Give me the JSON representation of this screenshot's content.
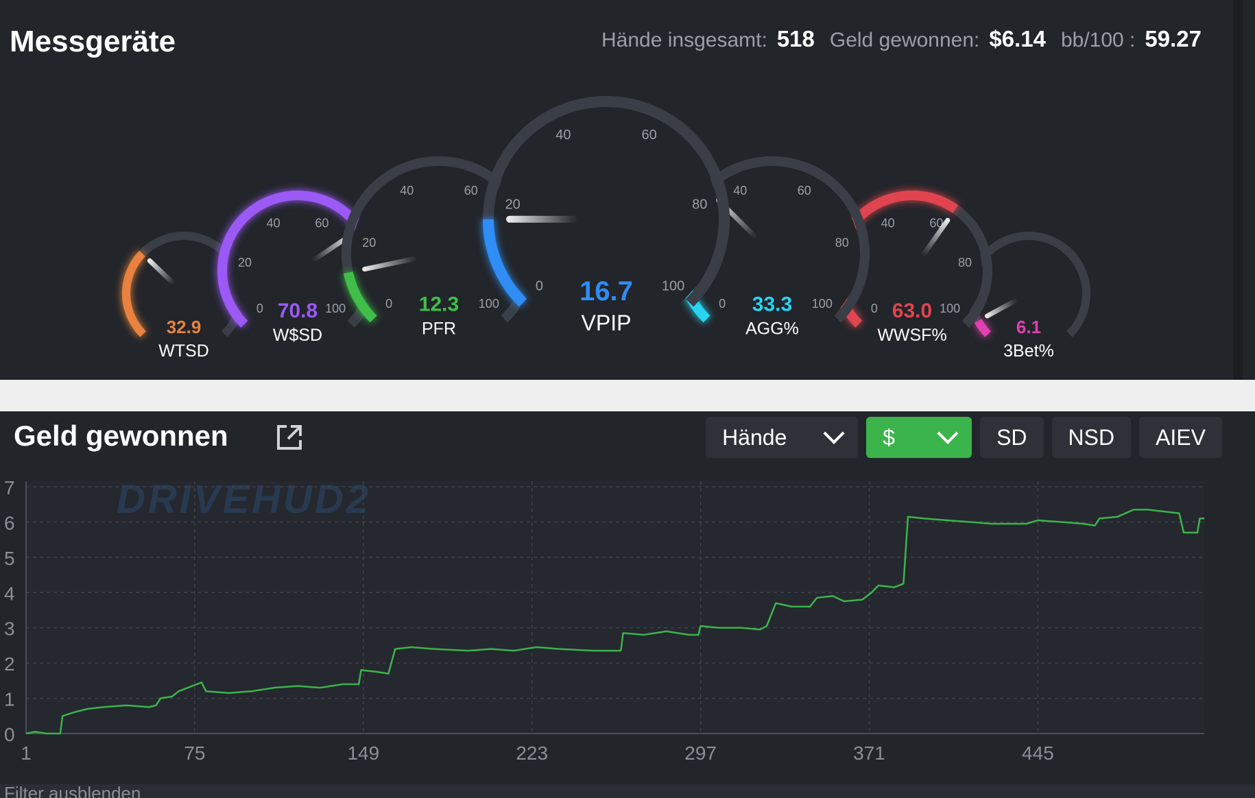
{
  "gauges_panel": {
    "title": "Messgeräte",
    "stats": [
      {
        "label": "Hände insgesamt:",
        "value": "518"
      },
      {
        "label": "Geld gewonnen:",
        "value": "$6.14"
      },
      {
        "label": "bb/100 :",
        "value": "59.27"
      }
    ],
    "gauges": [
      {
        "id": "wtsd",
        "name": "WTSD",
        "value": 32.9,
        "display": "32.9",
        "color": "#e8823e",
        "size": "small",
        "ticks": []
      },
      {
        "id": "wsd",
        "name": "W$SD",
        "value": 70.8,
        "display": "70.8",
        "color": "#9b59f5",
        "size": "medium",
        "ticks": [
          "0",
          "20",
          "40",
          "60",
          "100"
        ]
      },
      {
        "id": "pfr",
        "name": "PFR",
        "value": 12.3,
        "display": "12.3",
        "color": "#3fbf48",
        "size": "medium",
        "ticks": [
          "0",
          "20",
          "40",
          "60",
          "100"
        ]
      },
      {
        "id": "vpip",
        "name": "VPIP",
        "value": 16.7,
        "display": "16.7",
        "color": "#2f8df5",
        "size": "large",
        "ticks": [
          "0",
          "20",
          "40",
          "60",
          "80",
          "100"
        ]
      },
      {
        "id": "agg",
        "name": "AGG%",
        "value": 33.3,
        "display": "33.3",
        "color": "#28d4f0",
        "size": "medium",
        "ticks": [
          "0",
          "40",
          "60",
          "80",
          "100"
        ]
      },
      {
        "id": "wwsf",
        "name": "WWSF%",
        "value": 63.0,
        "display": "63.0",
        "color": "#e0454f",
        "size": "medium",
        "ticks": [
          "0",
          "40",
          "60",
          "80",
          "100"
        ]
      },
      {
        "id": "3bet",
        "name": "3Bet%",
        "value": 6.1,
        "display": "6.1",
        "color": "#e040b0",
        "size": "small",
        "ticks": []
      }
    ]
  },
  "money_panel": {
    "title": "Geld gewonnen",
    "external_icon": "external-link-icon",
    "toolbar": {
      "x_axis_select": "Hände",
      "unit_select": "$",
      "sd_label": "SD",
      "nsd_label": "NSD",
      "aiev_label": "AIEV"
    },
    "watermark": "DRIVEHUD2",
    "footer_text": "Filter ausblenden"
  },
  "chart_data": {
    "type": "line",
    "xlabel": "",
    "ylabel": "",
    "x_ticks": [
      "1",
      "75",
      "149",
      "223",
      "297",
      "371",
      "445"
    ],
    "y_ticks": [
      "0",
      "1",
      "2",
      "3",
      "4",
      "5",
      "6",
      "7"
    ],
    "xlim": [
      1,
      518
    ],
    "ylim": [
      0,
      7
    ],
    "grid": true,
    "series": [
      {
        "color": "#3cb44c",
        "points": [
          [
            1,
            0
          ],
          [
            5,
            0.05
          ],
          [
            10,
            0.0
          ],
          [
            16,
            0.0
          ],
          [
            17,
            0.5
          ],
          [
            22,
            0.6
          ],
          [
            28,
            0.7
          ],
          [
            35,
            0.75
          ],
          [
            45,
            0.8
          ],
          [
            55,
            0.75
          ],
          [
            58,
            0.8
          ],
          [
            60,
            1.0
          ],
          [
            65,
            1.05
          ],
          [
            68,
            1.2
          ],
          [
            72,
            1.3
          ],
          [
            78,
            1.45
          ],
          [
            80,
            1.2
          ],
          [
            90,
            1.15
          ],
          [
            100,
            1.2
          ],
          [
            110,
            1.3
          ],
          [
            120,
            1.35
          ],
          [
            130,
            1.3
          ],
          [
            140,
            1.4
          ],
          [
            147,
            1.4
          ],
          [
            148,
            1.8
          ],
          [
            155,
            1.75
          ],
          [
            160,
            1.7
          ],
          [
            163,
            2.4
          ],
          [
            170,
            2.45
          ],
          [
            180,
            2.4
          ],
          [
            195,
            2.35
          ],
          [
            205,
            2.4
          ],
          [
            215,
            2.35
          ],
          [
            225,
            2.45
          ],
          [
            235,
            2.4
          ],
          [
            250,
            2.35
          ],
          [
            262,
            2.35
          ],
          [
            263,
            2.85
          ],
          [
            272,
            2.8
          ],
          [
            282,
            2.9
          ],
          [
            292,
            2.8
          ],
          [
            296,
            2.8
          ],
          [
            297,
            3.05
          ],
          [
            305,
            3.0
          ],
          [
            315,
            3.0
          ],
          [
            323,
            2.95
          ],
          [
            326,
            3.05
          ],
          [
            330,
            3.7
          ],
          [
            337,
            3.6
          ],
          [
            345,
            3.6
          ],
          [
            348,
            3.85
          ],
          [
            355,
            3.9
          ],
          [
            360,
            3.75
          ],
          [
            368,
            3.8
          ],
          [
            372,
            4.0
          ],
          [
            375,
            4.2
          ],
          [
            382,
            4.15
          ],
          [
            386,
            4.25
          ],
          [
            388,
            6.15
          ],
          [
            395,
            6.1
          ],
          [
            405,
            6.05
          ],
          [
            415,
            6.0
          ],
          [
            425,
            5.95
          ],
          [
            440,
            5.95
          ],
          [
            445,
            6.05
          ],
          [
            455,
            6.0
          ],
          [
            465,
            5.95
          ],
          [
            470,
            5.9
          ],
          [
            472,
            6.1
          ],
          [
            480,
            6.15
          ],
          [
            487,
            6.35
          ],
          [
            493,
            6.35
          ],
          [
            500,
            6.3
          ],
          [
            507,
            6.25
          ],
          [
            509,
            5.7
          ],
          [
            515,
            5.7
          ],
          [
            516,
            6.1
          ],
          [
            518,
            6.1
          ]
        ]
      }
    ]
  }
}
